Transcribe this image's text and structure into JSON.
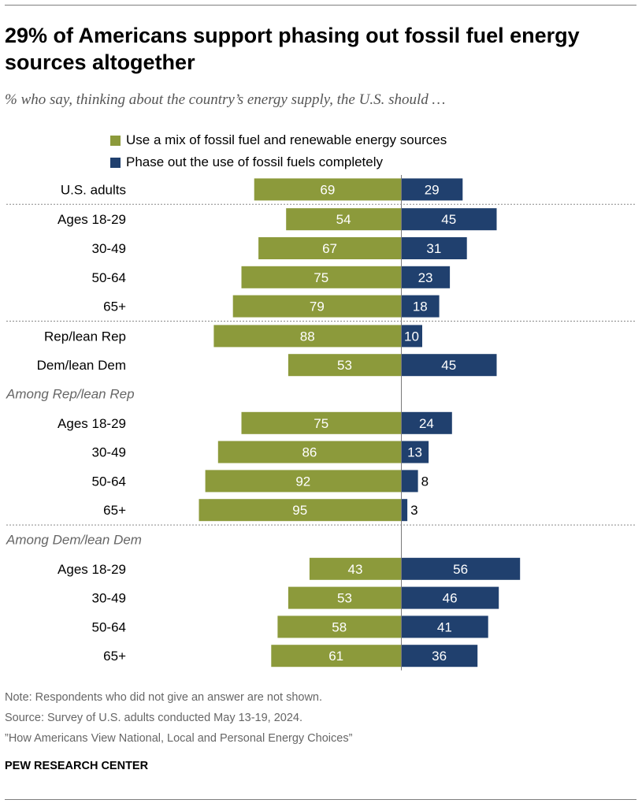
{
  "title": "29% of Americans support phasing out fossil fuel energy sources altogether",
  "subtitle": "% who say, thinking about the country’s energy supply, the U.S. should …",
  "legend": [
    {
      "label": "Use a mix of fossil fuel and renewable energy sources",
      "color": "#8c9a3b"
    },
    {
      "label": "Phase out the use of fossil fuels completely",
      "color": "#20406e"
    }
  ],
  "chart_data": {
    "type": "bar",
    "orientation": "horizontal-diverging",
    "series": [
      {
        "name": "Use a mix of fossil fuel and renewable energy sources",
        "color": "#8c9a3b",
        "direction": "left"
      },
      {
        "name": "Phase out the use of fossil fuels completely",
        "color": "#20406e",
        "direction": "right"
      }
    ],
    "rows": [
      {
        "label": "U.S. adults",
        "mix": 69,
        "phase_out": 29
      },
      {
        "divider": true
      },
      {
        "label": "Ages 18-29",
        "mix": 54,
        "phase_out": 45
      },
      {
        "label": "30-49",
        "mix": 67,
        "phase_out": 31
      },
      {
        "label": "50-64",
        "mix": 75,
        "phase_out": 23
      },
      {
        "label": "65+",
        "mix": 79,
        "phase_out": 18
      },
      {
        "divider": true
      },
      {
        "label": "Rep/lean Rep",
        "mix": 88,
        "phase_out": 10
      },
      {
        "label": "Dem/lean Dem",
        "mix": 53,
        "phase_out": 45
      },
      {
        "section": "Among Rep/lean Rep"
      },
      {
        "label": "Ages 18-29",
        "mix": 75,
        "phase_out": 24
      },
      {
        "label": "30-49",
        "mix": 86,
        "phase_out": 13
      },
      {
        "label": "50-64",
        "mix": 92,
        "phase_out": 8
      },
      {
        "label": "65+",
        "mix": 95,
        "phase_out": 3
      },
      {
        "divider": true
      },
      {
        "section": "Among Dem/lean Dem"
      },
      {
        "label": "Ages 18-29",
        "mix": 43,
        "phase_out": 56
      },
      {
        "label": "30-49",
        "mix": 53,
        "phase_out": 46
      },
      {
        "label": "50-64",
        "mix": 58,
        "phase_out": 41
      },
      {
        "label": "65+",
        "mix": 61,
        "phase_out": 36
      }
    ]
  },
  "notes": {
    "note": "Note: Respondents who did not give an answer are not shown.",
    "source": "Source: Survey of U.S. adults conducted May 13-19, 2024.",
    "report": "”How Americans View National, Local and Personal Energy Choices”"
  },
  "brand": "PEW RESEARCH CENTER"
}
